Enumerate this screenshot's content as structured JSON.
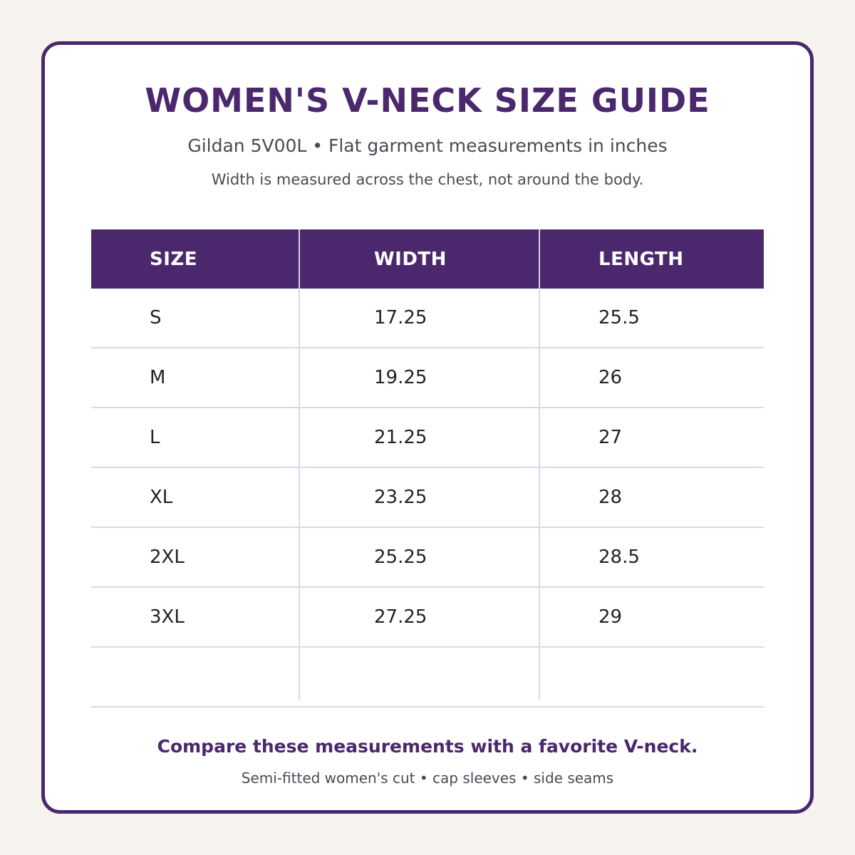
{
  "title": "WOMEN'S V-NECK SIZE GUIDE",
  "subtitle": "Gildan 5V00L • Flat garment measurements in inches",
  "note": "Width is measured across the chest, not around the body.",
  "table": {
    "headers": [
      "SIZE",
      "WIDTH",
      "LENGTH"
    ],
    "rows": [
      [
        "S",
        "17.25",
        "25.5"
      ],
      [
        "M",
        "19.25",
        "26"
      ],
      [
        "L",
        "21.25",
        "27"
      ],
      [
        "XL",
        "23.25",
        "28"
      ],
      [
        "2XL",
        "25.25",
        "28.5"
      ],
      [
        "3XL",
        "27.25",
        "29"
      ],
      [
        "",
        "",
        ""
      ]
    ]
  },
  "footer": {
    "main": "Compare these measurements with a favorite V-neck.",
    "sub": "Semi-fitted women's cut • cap sleeves • side seams"
  },
  "colors": {
    "accent": "#4b286d",
    "background": "#f6f3ee",
    "card": "#ffffff",
    "grid": "#ddd6e8"
  }
}
